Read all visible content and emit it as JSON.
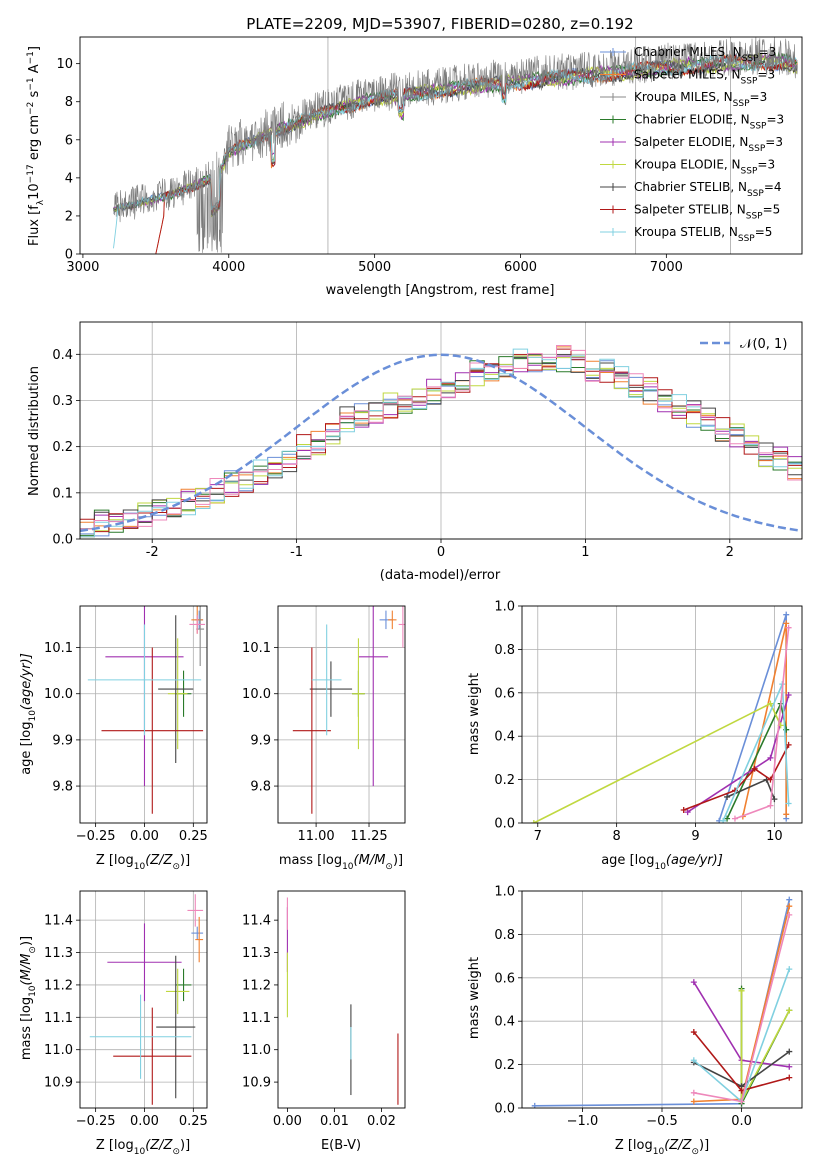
{
  "colors": [
    "#6a8fd8",
    "#f08030",
    "#8a8a8a",
    "#2a7a2a",
    "#a030b0",
    "#c0d840",
    "#444444",
    "#b01818",
    "#80d0e0",
    "#ee88bb",
    "#9ad040"
  ],
  "chart_data": [
    {
      "type": "line",
      "title": "PLATE=2209, MJD=53907, FIBERID=0280, z=0.192",
      "xlabel": "wavelength [Angstrom, rest frame]",
      "ylabel": "Flux [f",
      "ylabel_parts": {
        "a": "Flux [f",
        "b": "λ",
        "c": "10",
        "d": "−17",
        "e": " erg cm",
        "f": "−2",
        "g": " s",
        "h": "−1",
        "i": " A",
        "j": "−1",
        "k": "]"
      },
      "xlim": [
        2980,
        7930
      ],
      "ylim": [
        0,
        11.4
      ],
      "xticks": [
        3000,
        4000,
        5000,
        6000,
        7000
      ],
      "yticks": [
        0,
        2,
        4,
        6,
        8,
        10
      ],
      "grid": false,
      "legend_position": "right",
      "legend": [
        {
          "name": "Chabrier MILES, N",
          "sub": "SSP",
          "tail": "=3"
        },
        {
          "name": "Salpeter MILES, N",
          "sub": "SSP",
          "tail": "=3"
        },
        {
          "name": "Kroupa MILES, N",
          "sub": "SSP",
          "tail": "=3"
        },
        {
          "name": "Chabrier ELODIE, N",
          "sub": "SSP",
          "tail": "=3"
        },
        {
          "name": "Salpeter ELODIE, N",
          "sub": "SSP",
          "tail": "=3"
        },
        {
          "name": "Kroupa ELODIE, N",
          "sub": "SSP",
          "tail": "=3"
        },
        {
          "name": "Chabrier STELIB, N",
          "sub": "SSP",
          "tail": "=4"
        },
        {
          "name": "Salpeter STELIB, N",
          "sub": "SSP",
          "tail": "=5"
        },
        {
          "name": "Kroupa STELIB, N",
          "sub": "SSP",
          "tail": "=5"
        }
      ],
      "data_envelope": {
        "x": [
          3210,
          3300,
          3400,
          3500,
          3600,
          3700,
          3800,
          3900,
          3950,
          4000,
          4100,
          4200,
          4300,
          4500,
          4700,
          5000,
          5200,
          5500,
          5800,
          6000,
          6200,
          6500,
          6700,
          6800,
          7000,
          7200,
          7400,
          7600,
          7800,
          7900
        ],
        "y": [
          2.4,
          2.6,
          2.8,
          3.0,
          3.2,
          3.5,
          3.8,
          4.2,
          4.6,
          5.5,
          5.9,
          6.2,
          6.6,
          7.2,
          7.8,
          8.4,
          8.6,
          8.9,
          9.2,
          9.3,
          9.5,
          9.7,
          9.8,
          9.9,
          10.1,
          10.2,
          10.3,
          10.4,
          10.4,
          10.2
        ]
      }
    },
    {
      "type": "bar",
      "xlabel": "(data-model)/error",
      "ylabel": "Normed distribution",
      "xlim": [
        -2.5,
        2.5
      ],
      "ylim": [
        0,
        0.47
      ],
      "xticks": [
        -2,
        -1,
        0,
        1,
        2
      ],
      "yticks": [
        0.0,
        0.1,
        0.2,
        0.3,
        0.4
      ],
      "grid": true,
      "legend": [
        {
          "name": "𝒩(0, 1)"
        }
      ],
      "legend_position": "top-right",
      "bin_edges_start": -2.5,
      "bin_width": 0.1,
      "hist_mean": [
        0.03,
        0.035,
        0.04,
        0.05,
        0.055,
        0.07,
        0.075,
        0.08,
        0.095,
        0.105,
        0.12,
        0.13,
        0.145,
        0.16,
        0.175,
        0.2,
        0.21,
        0.235,
        0.26,
        0.27,
        0.28,
        0.29,
        0.3,
        0.31,
        0.32,
        0.33,
        0.345,
        0.36,
        0.37,
        0.38,
        0.39,
        0.39,
        0.395,
        0.39,
        0.385,
        0.37,
        0.36,
        0.35,
        0.335,
        0.32,
        0.3,
        0.29,
        0.27,
        0.26,
        0.24,
        0.22,
        0.2,
        0.185,
        0.17,
        0.155
      ]
    },
    {
      "type": "scatter",
      "xlabel": "Z [log",
      "xlabel_parts": {
        "a": "Z [log",
        "b": "10",
        "c": "(Z/Z",
        "d": "⊙",
        "e": ")]"
      },
      "ylabel_parts": {
        "a": "age  [log",
        "b": "10",
        "c": "(age/yr)]"
      },
      "xlim": [
        -0.33,
        0.32
      ],
      "ylim": [
        9.72,
        10.19
      ],
      "xticks": [
        -0.25,
        0.0,
        0.25
      ],
      "xticklabels": [
        "−0.25",
        "0.00",
        "0.25"
      ],
      "yticks": [
        9.8,
        9.9,
        10.0,
        10.1
      ],
      "grid": true,
      "points": [
        {
          "x": 0.28,
          "y": 10.16,
          "xe": 0.02,
          "ye": 0.02,
          "c": 0
        },
        {
          "x": 0.27,
          "y": 10.16,
          "xe": 0.03,
          "ye": 0.03,
          "c": 1
        },
        {
          "x": 0.285,
          "y": 10.14,
          "xe": 0.02,
          "ye": 0.08,
          "c": 2
        },
        {
          "x": 0.2,
          "y": 10.0,
          "xe": 0.04,
          "ye": 0.05,
          "c": 3
        },
        {
          "x": 0.0,
          "y": 10.08,
          "xe": 0.2,
          "ye": 0.28,
          "c": 4
        },
        {
          "x": 0.17,
          "y": 10.0,
          "xe": 0.05,
          "ye": 0.12,
          "c": 5
        },
        {
          "x": 0.16,
          "y": 10.01,
          "xe": 0.09,
          "ye": 0.16,
          "c": 6
        },
        {
          "x": 0.04,
          "y": 9.92,
          "xe": 0.26,
          "ye": 0.18,
          "c": 7
        },
        {
          "x": 0.0,
          "y": 10.03,
          "xe": 0.29,
          "ye": 0.12,
          "c": 8
        },
        {
          "x": 0.27,
          "y": 10.15,
          "xe": 0.04,
          "ye": 0.02,
          "c": 9
        }
      ]
    },
    {
      "type": "scatter",
      "xlabel_parts": {
        "a": "mass [log",
        "b": "10",
        "c": "(M/M",
        "d": "⊙",
        "e": ")]"
      },
      "xlim": [
        10.82,
        11.42
      ],
      "ylim": [
        9.72,
        10.19
      ],
      "xticks": [
        11.0,
        11.25
      ],
      "xticklabels": [
        "11.00",
        "11.25"
      ],
      "yticks": [
        9.8,
        9.9,
        10.0,
        10.1
      ],
      "grid": true,
      "points": [
        {
          "x": 11.33,
          "y": 10.16,
          "xe": 0.03,
          "ye": 0.02,
          "c": 0
        },
        {
          "x": 11.36,
          "y": 10.16,
          "xe": 0.02,
          "ye": 0.02,
          "c": 1
        },
        {
          "x": 11.2,
          "y": 10.0,
          "xe": 0.03,
          "ye": 0.05,
          "c": 3
        },
        {
          "x": 11.27,
          "y": 10.08,
          "xe": 0.07,
          "ye": 0.28,
          "c": 4
        },
        {
          "x": 11.2,
          "y": 10.0,
          "xe": 0.03,
          "ye": 0.12,
          "c": 5
        },
        {
          "x": 11.07,
          "y": 10.01,
          "xe": 0.1,
          "ye": 0.06,
          "c": 6
        },
        {
          "x": 10.98,
          "y": 9.92,
          "xe": 0.09,
          "ye": 0.18,
          "c": 7
        },
        {
          "x": 11.05,
          "y": 10.03,
          "xe": 0.07,
          "ye": 0.12,
          "c": 8
        },
        {
          "x": 11.41,
          "y": 10.15,
          "xe": 0.02,
          "ye": 0.05,
          "c": 9
        }
      ]
    },
    {
      "type": "line",
      "xlabel_parts": {
        "a": "age  [log",
        "b": "10",
        "c": "(age/yr)]"
      },
      "ylabel": "mass weight",
      "xlim": [
        6.8,
        10.35
      ],
      "ylim": [
        0,
        1
      ],
      "xticks": [
        7,
        8,
        9,
        10
      ],
      "yticks": [
        0.0,
        0.2,
        0.4,
        0.6,
        0.8,
        1.0
      ],
      "grid": true,
      "series": [
        {
          "c": 0,
          "x": [
            9.3,
            10.15,
            10.15
          ],
          "y": [
            0.01,
            0.96,
            0.02
          ]
        },
        {
          "c": 1,
          "x": [
            9.6,
            10.15,
            10.15
          ],
          "y": [
            0.03,
            0.92,
            0.04
          ]
        },
        {
          "c": 3,
          "x": [
            9.4,
            10.08,
            10.15
          ],
          "y": [
            0.02,
            0.55,
            0.43
          ]
        },
        {
          "c": 4,
          "x": [
            8.9,
            9.95,
            10.18
          ],
          "y": [
            0.05,
            0.3,
            0.59
          ]
        },
        {
          "c": 5,
          "x": [
            6.95,
            9.95,
            10.08
          ],
          "y": [
            0.0,
            0.55,
            0.45
          ]
        },
        {
          "c": 6,
          "x": [
            9.4,
            9.9,
            10.0
          ],
          "y": [
            0.12,
            0.2,
            0.11
          ]
        },
        {
          "c": 7,
          "x": [
            8.85,
            9.5,
            9.75,
            9.95,
            10.18
          ],
          "y": [
            0.06,
            0.15,
            0.25,
            0.2,
            0.36
          ]
        },
        {
          "c": 8,
          "x": [
            9.35,
            10.1,
            10.18
          ],
          "y": [
            0.01,
            0.64,
            0.09
          ]
        },
        {
          "c": 9,
          "x": [
            9.5,
            9.95,
            10.18
          ],
          "y": [
            0.02,
            0.08,
            0.9
          ]
        }
      ]
    },
    {
      "type": "scatter",
      "xlabel_parts": {
        "a": "Z [log",
        "b": "10",
        "c": "(Z/Z",
        "d": "⊙",
        "e": ")]"
      },
      "ylabel_parts": {
        "a": "mass [log",
        "b": "10",
        "c": "(M/M",
        "d": "⊙",
        "e": ")]"
      },
      "xlim": [
        -0.33,
        0.32
      ],
      "ylim": [
        10.82,
        11.49
      ],
      "xticks": [
        -0.25,
        0.0,
        0.25
      ],
      "xticklabels": [
        "−0.25",
        "0.00",
        "0.25"
      ],
      "yticks": [
        10.9,
        11.0,
        11.1,
        11.2,
        11.3,
        11.4
      ],
      "grid": true,
      "points": [
        {
          "x": 0.27,
          "y": 11.36,
          "xe": 0.03,
          "ye": 0.02,
          "c": 0
        },
        {
          "x": 0.28,
          "y": 11.34,
          "xe": 0.02,
          "ye": 0.07,
          "c": 1
        },
        {
          "x": 0.2,
          "y": 11.2,
          "xe": 0.04,
          "ye": 0.05,
          "c": 3
        },
        {
          "x": 0.0,
          "y": 11.27,
          "xe": 0.19,
          "ye": 0.12,
          "c": 4
        },
        {
          "x": 0.17,
          "y": 11.18,
          "xe": 0.06,
          "ye": 0.07,
          "c": 5
        },
        {
          "x": 0.16,
          "y": 11.07,
          "xe": 0.1,
          "ye": 0.22,
          "c": 6
        },
        {
          "x": 0.04,
          "y": 10.98,
          "xe": 0.2,
          "ye": 0.15,
          "c": 7
        },
        {
          "x": -0.02,
          "y": 11.04,
          "xe": 0.26,
          "ye": 0.13,
          "c": 8
        },
        {
          "x": 0.26,
          "y": 11.43,
          "xe": 0.04,
          "ye": 0.05,
          "c": 9
        }
      ]
    },
    {
      "type": "scatter",
      "xlabel": "E(B-V)",
      "xlim": [
        -0.002,
        0.025
      ],
      "ylim": [
        10.82,
        11.49
      ],
      "xticks": [
        0.0,
        0.01,
        0.02
      ],
      "xticklabels": [
        "0.00",
        "0.01",
        "0.02"
      ],
      "yticks": [
        10.9,
        11.0,
        11.1,
        11.2,
        11.3,
        11.4
      ],
      "grid": false,
      "points": [
        {
          "x": 0.0,
          "y": 11.34,
          "xe": 0.0,
          "ye": 0.1,
          "c": 4
        },
        {
          "x": 0.0,
          "y": 11.2,
          "xe": 0.0,
          "ye": 0.1,
          "c": 5
        },
        {
          "x": 0.0,
          "y": 11.42,
          "xe": 0.0,
          "ye": 0.05,
          "c": 9
        },
        {
          "x": 0.0135,
          "y": 11.0,
          "xe": 0.0,
          "ye": 0.14,
          "c": 6
        },
        {
          "x": 0.0135,
          "y": 11.02,
          "xe": 0.0,
          "ye": 0.05,
          "c": 8
        },
        {
          "x": 0.0235,
          "y": 10.94,
          "xe": 0.0,
          "ye": 0.11,
          "c": 7
        }
      ]
    },
    {
      "type": "line",
      "xlabel_parts": {
        "a": "Z [log",
        "b": "10",
        "c": "(Z/Z",
        "d": "⊙",
        "e": ")]"
      },
      "ylabel": "mass weight",
      "xlim": [
        -1.38,
        0.38
      ],
      "ylim": [
        0,
        1
      ],
      "xticks": [
        -1.0,
        -0.5,
        0.0
      ],
      "xticklabels": [
        "−1.0",
        "−0.5",
        "0.0"
      ],
      "yticks": [
        0.0,
        0.2,
        0.4,
        0.6,
        0.8,
        1.0
      ],
      "grid": true,
      "series": [
        {
          "c": 0,
          "x": [
            -1.3,
            0.0,
            0.3
          ],
          "y": [
            0.01,
            0.02,
            0.96
          ]
        },
        {
          "c": 1,
          "x": [
            -0.3,
            0.0,
            0.3
          ],
          "y": [
            0.03,
            0.04,
            0.93
          ]
        },
        {
          "c": 3,
          "x": [
            0.0,
            0.0,
            0.3
          ],
          "y": [
            0.55,
            0.02,
            0.45
          ]
        },
        {
          "c": 4,
          "x": [
            -0.3,
            0.0,
            0.3
          ],
          "y": [
            0.58,
            0.22,
            0.19
          ]
        },
        {
          "c": 5,
          "x": [
            0.0,
            0.0,
            0.3
          ],
          "y": [
            0.54,
            0.03,
            0.45
          ]
        },
        {
          "c": 6,
          "x": [
            -0.3,
            0.0,
            0.3
          ],
          "y": [
            0.21,
            0.1,
            0.26
          ]
        },
        {
          "c": 7,
          "x": [
            -0.3,
            0.0,
            0.3
          ],
          "y": [
            0.35,
            0.08,
            0.14
          ]
        },
        {
          "c": 8,
          "x": [
            -0.3,
            0.0,
            0.3
          ],
          "y": [
            0.22,
            0.03,
            0.64
          ]
        },
        {
          "c": 9,
          "x": [
            -0.3,
            0.0,
            0.3
          ],
          "y": [
            0.07,
            0.03,
            0.89
          ]
        }
      ]
    }
  ]
}
